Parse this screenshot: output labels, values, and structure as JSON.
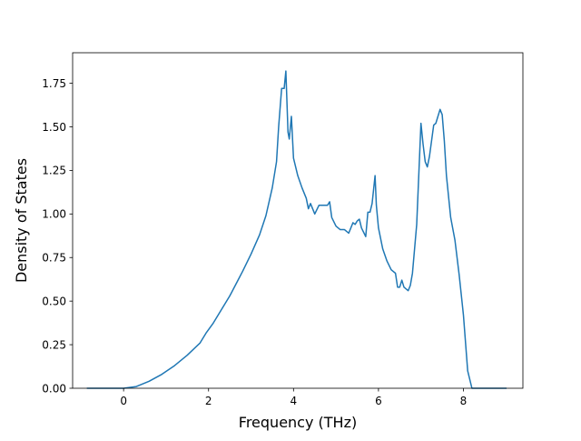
{
  "chart_data": {
    "type": "line",
    "title": "",
    "xlabel": "Frequency (THz)",
    "ylabel": "Density of States",
    "xlim": [
      -1.2,
      9.4
    ],
    "ylim": [
      0,
      1.925
    ],
    "xticks": [
      0,
      2,
      4,
      6,
      8
    ],
    "xtick_labels": [
      "0",
      "2",
      "4",
      "6",
      "8"
    ],
    "yticks": [
      0.0,
      0.25,
      0.5,
      0.75,
      1.0,
      1.25,
      1.5,
      1.75
    ],
    "ytick_labels": [
      "0.00",
      "0.25",
      "0.50",
      "0.75",
      "1.00",
      "1.25",
      "1.50",
      "1.75"
    ],
    "grid": false,
    "line_color": "#1f77b4",
    "series": [
      {
        "x": [
          -0.85,
          0.0,
          0.3,
          0.6,
          0.9,
          1.2,
          1.5,
          1.8,
          1.95,
          2.1,
          2.3,
          2.5,
          2.65,
          2.8,
          3.0,
          3.2,
          3.35,
          3.5,
          3.6,
          3.65,
          3.72,
          3.78,
          3.82,
          3.87,
          3.9,
          3.95,
          4.0,
          4.1,
          4.2,
          4.3,
          4.35,
          4.4,
          4.5,
          4.6,
          4.7,
          4.8,
          4.85,
          4.9,
          5.0,
          5.1,
          5.2,
          5.3,
          5.4,
          5.45,
          5.5,
          5.55,
          5.6,
          5.7,
          5.75,
          5.8,
          5.85,
          5.92,
          5.95,
          6.0,
          6.1,
          6.2,
          6.3,
          6.4,
          6.45,
          6.5,
          6.55,
          6.6,
          6.7,
          6.75,
          6.8,
          6.9,
          7.0,
          7.05,
          7.1,
          7.15,
          7.2,
          7.3,
          7.35,
          7.45,
          7.5,
          7.55,
          7.6,
          7.7,
          7.8,
          7.9,
          8.0,
          8.1,
          8.2,
          8.25,
          9.0
        ],
        "y": [
          0.0,
          0.0,
          0.01,
          0.04,
          0.08,
          0.13,
          0.19,
          0.26,
          0.32,
          0.37,
          0.45,
          0.53,
          0.6,
          0.67,
          0.77,
          0.88,
          0.99,
          1.15,
          1.3,
          1.5,
          1.72,
          1.72,
          1.82,
          1.47,
          1.43,
          1.56,
          1.32,
          1.22,
          1.15,
          1.09,
          1.03,
          1.06,
          1.0,
          1.05,
          1.05,
          1.05,
          1.07,
          0.98,
          0.93,
          0.91,
          0.91,
          0.89,
          0.95,
          0.94,
          0.96,
          0.97,
          0.92,
          0.87,
          1.01,
          1.01,
          1.06,
          1.22,
          1.05,
          0.92,
          0.8,
          0.73,
          0.68,
          0.66,
          0.58,
          0.58,
          0.62,
          0.58,
          0.56,
          0.59,
          0.66,
          0.94,
          1.52,
          1.4,
          1.3,
          1.27,
          1.33,
          1.51,
          1.52,
          1.6,
          1.57,
          1.42,
          1.22,
          0.98,
          0.85,
          0.65,
          0.42,
          0.1,
          0.0,
          0.0,
          0.0
        ]
      }
    ]
  }
}
